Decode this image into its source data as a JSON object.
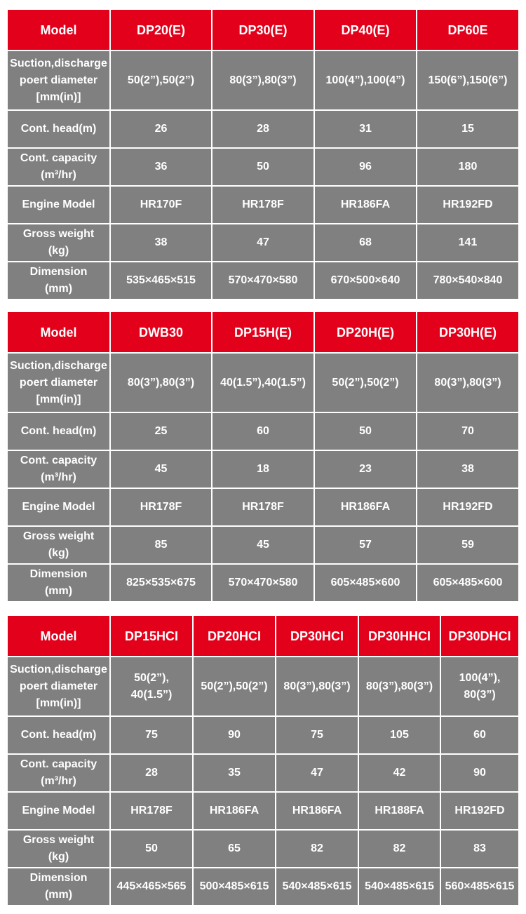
{
  "tables": [
    {
      "header": [
        "Model",
        "DP20(E)",
        "DP30(E)",
        "DP40(E)",
        "DP60E"
      ],
      "rows": [
        [
          [
            "Suction,discharge",
            "poert diameter",
            "[mm(in)]"
          ],
          "50(2”),50(2”)",
          "80(3”),80(3”)",
          "100(4”),100(4”)",
          "150(6”),150(6”)"
        ],
        [
          "Cont. head(m)",
          "26",
          "28",
          "31",
          "15"
        ],
        [
          [
            "Cont. capacity",
            "(m³/hr)"
          ],
          "36",
          "50",
          "96",
          "180"
        ],
        [
          "Engine Model",
          "HR170F",
          "HR178F",
          "HR186FA",
          "HR192FD"
        ],
        [
          [
            "Gross weight",
            "(kg)"
          ],
          "38",
          "47",
          "68",
          "141"
        ],
        [
          [
            "Dimension",
            "(mm)"
          ],
          "535×465×515",
          "570×470×580",
          "670×500×640",
          "780×540×840"
        ]
      ]
    },
    {
      "header": [
        "Model",
        "DWB30",
        "DP15H(E)",
        "DP20H(E)",
        "DP30H(E)"
      ],
      "rows": [
        [
          [
            "Suction,discharge",
            "poert diameter",
            "[mm(in)]"
          ],
          "80(3”),80(3”)",
          "40(1.5”),40(1.5”)",
          "50(2”),50(2”)",
          "80(3”),80(3”)"
        ],
        [
          "Cont. head(m)",
          "25",
          "60",
          "50",
          "70"
        ],
        [
          [
            "Cont. capacity",
            "(m³/hr)"
          ],
          "45",
          "18",
          "23",
          "38"
        ],
        [
          "Engine Model",
          "HR178F",
          "HR178F",
          "HR186FA",
          "HR192FD"
        ],
        [
          [
            "Gross weight",
            "(kg)"
          ],
          "85",
          "45",
          "57",
          "59"
        ],
        [
          [
            "Dimension",
            "(mm)"
          ],
          "825×535×675",
          "570×470×580",
          "605×485×600",
          "605×485×600"
        ]
      ]
    },
    {
      "header": [
        "Model",
        "DP15HCI",
        "DP20HCI",
        "DP30HCI",
        "DP30HHCI",
        "DP30DHCI"
      ],
      "rows": [
        [
          [
            "Suction,discharge",
            "poert diameter",
            "[mm(in)]"
          ],
          [
            "50(2”),",
            "40(1.5”)"
          ],
          "50(2”),50(2”)",
          "80(3”),80(3”)",
          "80(3”),80(3”)",
          [
            "100(4”),",
            "80(3”)"
          ]
        ],
        [
          "Cont. head(m)",
          "75",
          "90",
          "75",
          "105",
          "60"
        ],
        [
          [
            "Cont. capacity",
            "(m³/hr)"
          ],
          "28",
          "35",
          "47",
          "42",
          "90"
        ],
        [
          "Engine Model",
          "HR178F",
          "HR186FA",
          "HR186FA",
          "HR188FA",
          "HR192FD"
        ],
        [
          [
            "Gross weight",
            "(kg)"
          ],
          "50",
          "65",
          "82",
          "82",
          "83"
        ],
        [
          [
            "Dimension",
            "(mm)"
          ],
          "445×465×565",
          "500×485×615",
          "540×485×615",
          "540×485×615",
          "560×485×615"
        ]
      ]
    }
  ]
}
